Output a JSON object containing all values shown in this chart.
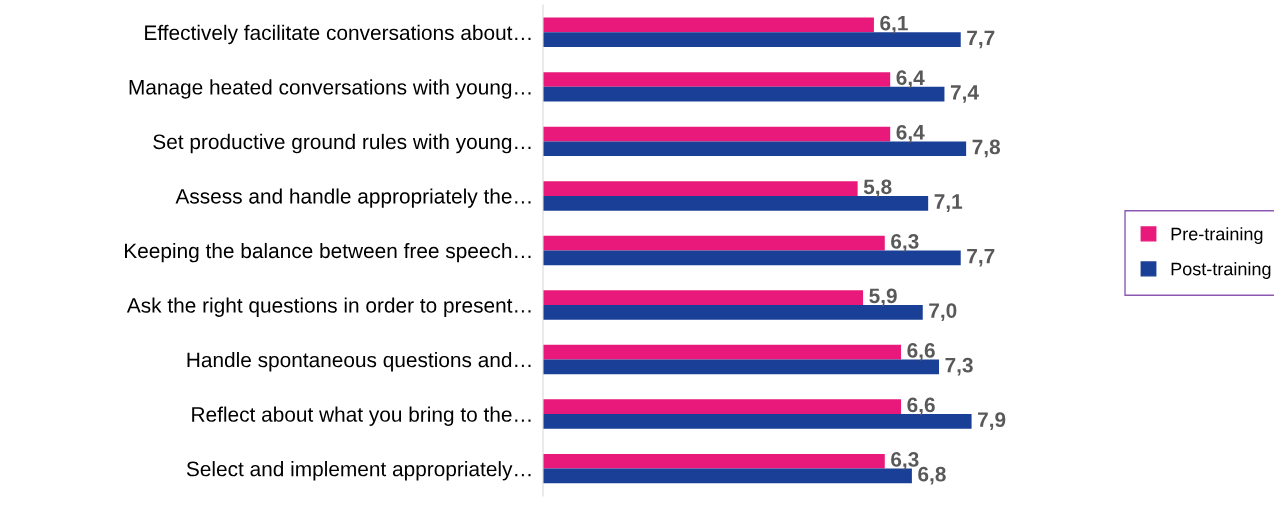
{
  "chart_data": {
    "type": "bar",
    "orientation": "horizontal",
    "categories": [
      "Effectively facilitate conversations about…",
      "Manage heated conversations with young…",
      "Set productive ground rules with young…",
      "Assess and handle appropriately the…",
      "Keeping the balance between free speech…",
      "Ask the right questions in order to present…",
      "Handle spontaneous questions and…",
      "Reflect about what you bring to the…",
      "Select and implement appropriately…"
    ],
    "series": [
      {
        "name": "Pre-training",
        "color": "#e8197a",
        "values": [
          6.1,
          6.4,
          6.4,
          5.8,
          6.3,
          5.9,
          6.6,
          6.6,
          6.3
        ],
        "value_labels": [
          "6,1",
          "6,4",
          "6,4",
          "5,8",
          "6,3",
          "5,9",
          "6,6",
          "6,6",
          "6,3"
        ]
      },
      {
        "name": "Post-training",
        "color": "#1a3f96",
        "values": [
          7.7,
          7.4,
          7.8,
          7.1,
          7.7,
          7.0,
          7.3,
          7.9,
          6.8
        ],
        "value_labels": [
          "7,7",
          "7,4",
          "7,8",
          "7,1",
          "7,7",
          "7,0",
          "7,3",
          "7,9",
          "6,8"
        ]
      }
    ],
    "tick_labels": "y",
    "legend": "right",
    "grid": false
  }
}
